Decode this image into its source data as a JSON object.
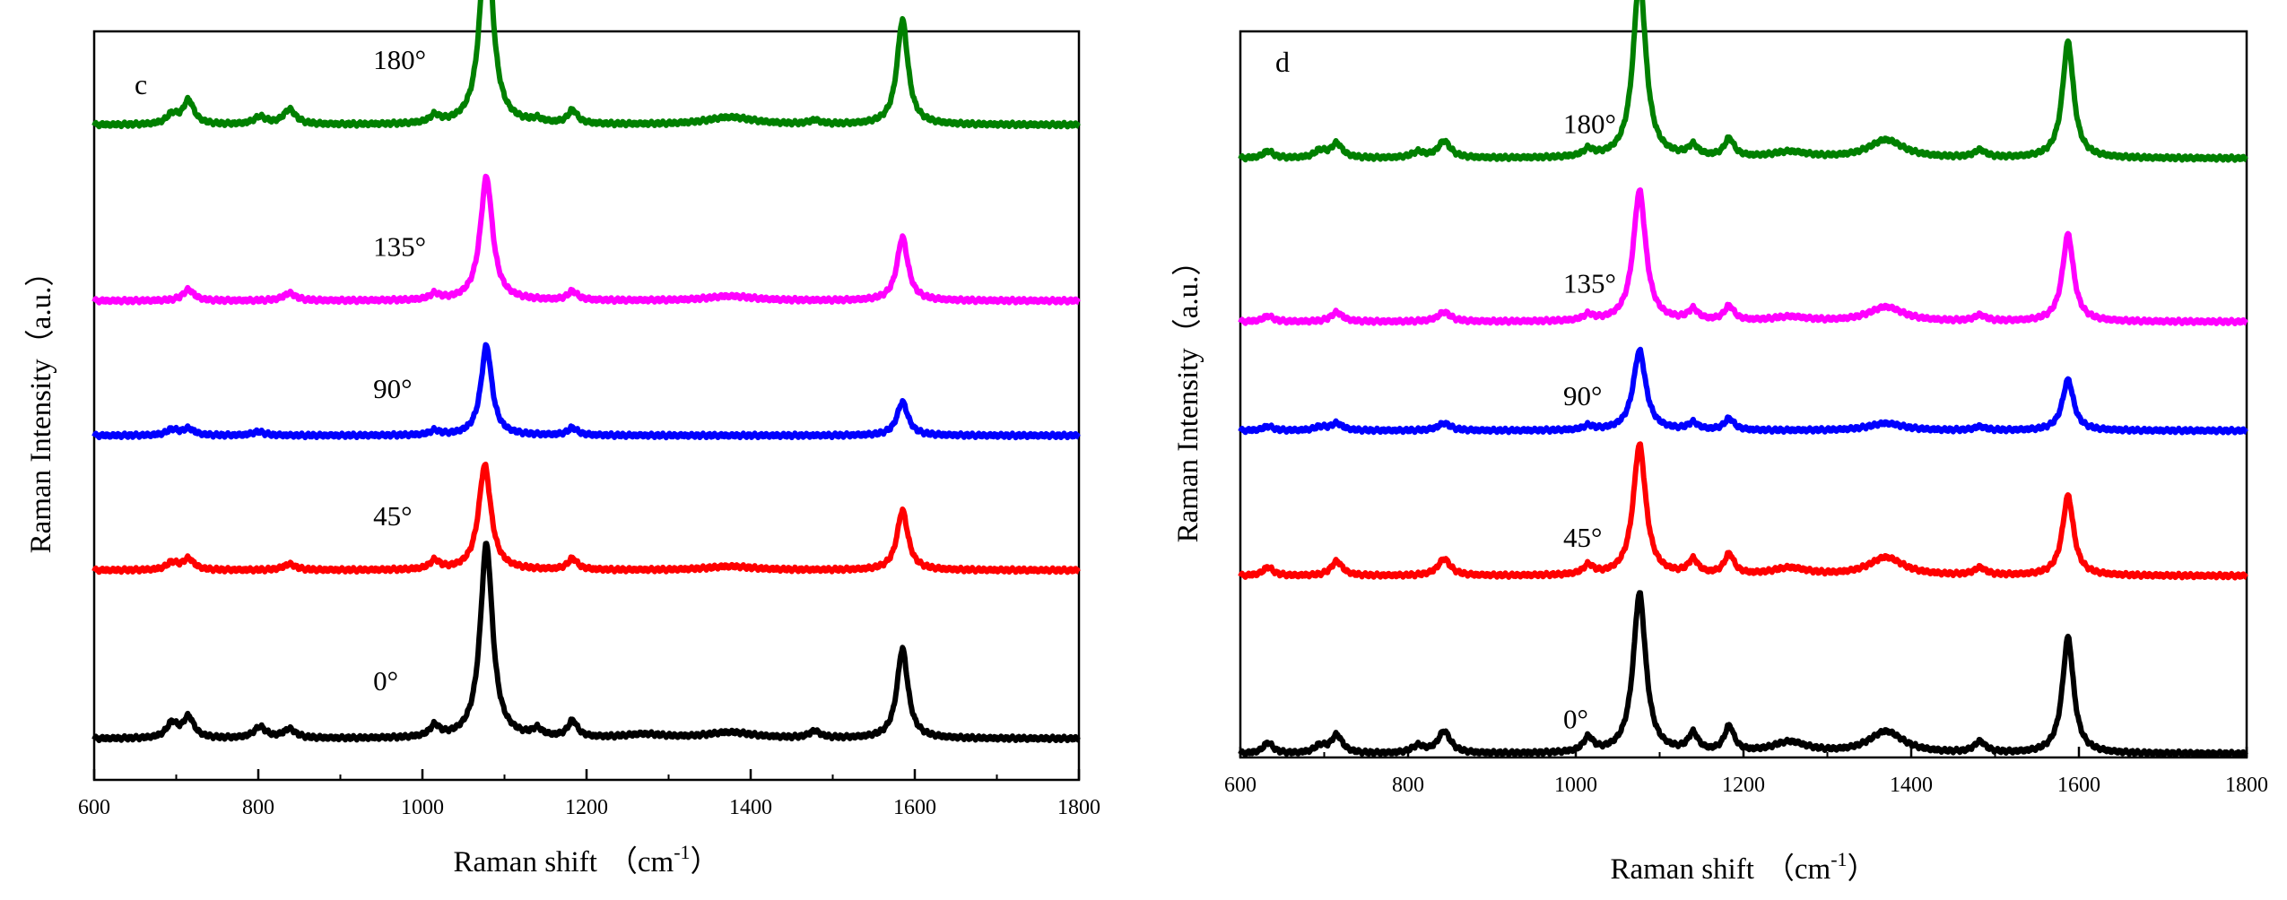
{
  "chart_data": [
    {
      "type": "line",
      "panel_label": "c",
      "xlabel": "Raman shift",
      "xlabel_unit": "（cm",
      "xlabel_unit_sup": "-1",
      "xlabel_unit_close": "）",
      "ylabel": "Raman Intensity（a.u.）",
      "xlim": [
        600,
        1800
      ],
      "ylim": [
        0,
        100
      ],
      "xticks": [
        "600",
        "800",
        "1000",
        "1200",
        "1400",
        "1600",
        "1800"
      ],
      "yticks": [],
      "series": [
        {
          "name": "0°",
          "color": "#000000",
          "baseline": 5.5,
          "label_x": 940,
          "label_y": 12,
          "peaks": [
            [
              695,
              2,
              8
            ],
            [
              715,
              2.8,
              8
            ],
            [
              802,
              1.5,
              9
            ],
            [
              838,
              1.2,
              9
            ],
            [
              1015,
              1.5,
              7
            ],
            [
              1078,
              26,
              9
            ],
            [
              1140,
              1,
              7
            ],
            [
              1183,
              2.2,
              7
            ],
            [
              1270,
              0.5,
              30
            ],
            [
              1375,
              0.8,
              35
            ],
            [
              1478,
              0.9,
              8
            ],
            [
              1585,
              12,
              8
            ]
          ]
        },
        {
          "name": "45°",
          "color": "#ff0000",
          "baseline": 28,
          "label_x": 940,
          "label_y": 34,
          "peaks": [
            [
              695,
              1,
              8
            ],
            [
              715,
              1.5,
              8
            ],
            [
              838,
              0.8,
              9
            ],
            [
              1015,
              1.2,
              7
            ],
            [
              1076,
              14,
              9
            ],
            [
              1183,
              1.5,
              7
            ],
            [
              1375,
              0.5,
              35
            ],
            [
              1585,
              8,
              8
            ]
          ]
        },
        {
          "name": "90°",
          "color": "#0000ff",
          "baseline": 46,
          "label_x": 940,
          "label_y": 51,
          "peaks": [
            [
              695,
              0.8,
              8
            ],
            [
              715,
              0.9,
              8
            ],
            [
              800,
              0.5,
              9
            ],
            [
              1015,
              0.6,
              7
            ],
            [
              1078,
              12,
              8
            ],
            [
              1183,
              1,
              7
            ],
            [
              1585,
              4.5,
              8
            ]
          ]
        },
        {
          "name": "135°",
          "color": "#ff00ff",
          "baseline": 64,
          "label_x": 940,
          "label_y": 70,
          "peaks": [
            [
              715,
              1.5,
              8
            ],
            [
              838,
              1,
              9
            ],
            [
              1015,
              0.8,
              7
            ],
            [
              1078,
              16.5,
              9
            ],
            [
              1183,
              1.2,
              7
            ],
            [
              1375,
              0.6,
              35
            ],
            [
              1585,
              8.5,
              8
            ]
          ]
        },
        {
          "name": "180°",
          "color": "#008000",
          "baseline": 87.5,
          "label_x": 940,
          "label_y": 95,
          "peaks": [
            [
              695,
              1.3,
              8
            ],
            [
              715,
              3.2,
              8
            ],
            [
              802,
              1,
              9
            ],
            [
              838,
              2,
              9
            ],
            [
              1015,
              1,
              7
            ],
            [
              1078,
              27,
              9
            ],
            [
              1140,
              0.5,
              7
            ],
            [
              1183,
              1.8,
              7
            ],
            [
              1375,
              1,
              35
            ],
            [
              1478,
              0.5,
              8
            ],
            [
              1585,
              14,
              8
            ]
          ]
        }
      ]
    },
    {
      "type": "line",
      "panel_label": "d",
      "xlabel": "Raman shift",
      "xlabel_unit": "（cm",
      "xlabel_unit_sup": "-1",
      "xlabel_unit_close": "）",
      "ylabel": "Raman Intensity（a.u.）",
      "xlim": [
        600,
        1800
      ],
      "ylim": [
        0,
        100
      ],
      "xticks": [
        "600",
        "800",
        "1000",
        "1200",
        "1400",
        "1600",
        "1800"
      ],
      "yticks": [],
      "series": [
        {
          "name": "0°",
          "color": "#000000",
          "baseline": 0.5,
          "label_x": 985,
          "label_y": 4,
          "peaks": [
            [
              633,
              1.5,
              7
            ],
            [
              695,
              1,
              8
            ],
            [
              715,
              2.5,
              8
            ],
            [
              812,
              1,
              9
            ],
            [
              843,
              3,
              9
            ],
            [
              1015,
              2,
              7
            ],
            [
              1076,
              22,
              9
            ],
            [
              1140,
              2.5,
              7
            ],
            [
              1183,
              3.5,
              7
            ],
            [
              1255,
              1.5,
              25
            ],
            [
              1370,
              3,
              25
            ],
            [
              1482,
              1.5,
              8
            ],
            [
              1587,
              16,
              8
            ]
          ]
        },
        {
          "name": "45°",
          "color": "#ff0000",
          "baseline": 25,
          "label_x": 985,
          "label_y": 29,
          "peaks": [
            [
              633,
              1.2,
              7
            ],
            [
              715,
              2,
              8
            ],
            [
              843,
              2.3,
              9
            ],
            [
              1015,
              1.3,
              7
            ],
            [
              1076,
              18,
              9
            ],
            [
              1140,
              2,
              7
            ],
            [
              1183,
              2.8,
              7
            ],
            [
              1255,
              1,
              25
            ],
            [
              1370,
              2.5,
              25
            ],
            [
              1482,
              1,
              8
            ],
            [
              1587,
              11,
              8
            ]
          ]
        },
        {
          "name": "90°",
          "color": "#0000ff",
          "baseline": 45,
          "label_x": 985,
          "label_y": 48.5,
          "peaks": [
            [
              633,
              0.6,
              7
            ],
            [
              695,
              0.5,
              8
            ],
            [
              715,
              1,
              8
            ],
            [
              843,
              1,
              9
            ],
            [
              1015,
              0.6,
              7
            ],
            [
              1076,
              11,
              9
            ],
            [
              1140,
              1,
              7
            ],
            [
              1183,
              1.6,
              7
            ],
            [
              1370,
              1,
              25
            ],
            [
              1482,
              0.5,
              8
            ],
            [
              1587,
              7,
              8
            ]
          ]
        },
        {
          "name": "135°",
          "color": "#ff00ff",
          "baseline": 60,
          "label_x": 985,
          "label_y": 64,
          "peaks": [
            [
              633,
              0.8,
              7
            ],
            [
              715,
              1.3,
              8
            ],
            [
              843,
              1.3,
              9
            ],
            [
              1015,
              0.8,
              7
            ],
            [
              1076,
              18,
              9
            ],
            [
              1140,
              1.5,
              7
            ],
            [
              1183,
              2,
              7
            ],
            [
              1255,
              0.6,
              25
            ],
            [
              1370,
              2,
              25
            ],
            [
              1482,
              0.8,
              8
            ],
            [
              1587,
              12,
              8
            ]
          ]
        },
        {
          "name": "180°",
          "color": "#008000",
          "baseline": 82.5,
          "label_x": 985,
          "label_y": 86,
          "peaks": [
            [
              633,
              1,
              7
            ],
            [
              695,
              1,
              8
            ],
            [
              715,
              2,
              8
            ],
            [
              812,
              0.8,
              9
            ],
            [
              843,
              2.3,
              9
            ],
            [
              1015,
              1,
              7
            ],
            [
              1076,
              25,
              9
            ],
            [
              1140,
              1.5,
              7
            ],
            [
              1183,
              2.5,
              7
            ],
            [
              1255,
              0.8,
              25
            ],
            [
              1370,
              2.5,
              25
            ],
            [
              1482,
              1,
              8
            ],
            [
              1587,
              16,
              8
            ]
          ]
        }
      ]
    }
  ]
}
